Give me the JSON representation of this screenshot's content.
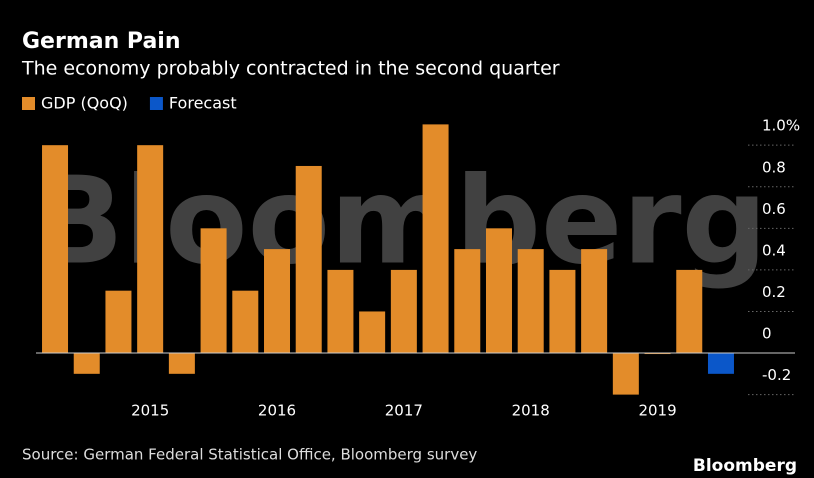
{
  "chart_data": {
    "type": "bar",
    "title": "German Pain",
    "subtitle": "The economy probably contracted in the second quarter",
    "source": "Source: German Federal Statistical Office, Bloomberg survey",
    "watermark": "Bloomberg",
    "brand": "Bloomberg",
    "x": [
      2014.25,
      2014.5,
      2014.75,
      2015,
      2015.25,
      2015.5,
      2015.75,
      2016,
      2016.25,
      2016.5,
      2016.75,
      2017,
      2017.25,
      2017.5,
      2017.75,
      2018,
      2018.25,
      2018.5,
      2018.75,
      2019,
      2019.25,
      2019.5
    ],
    "xlim": [
      2014.1,
      2019.65
    ],
    "xticks": [
      2015,
      2016,
      2017,
      2018,
      2019
    ],
    "series": [
      {
        "name": "GDP (QoQ)",
        "color": "#e38c2a",
        "values": [
          1.0,
          -0.1,
          0.3,
          1.0,
          -0.1,
          0.6,
          0.3,
          0.5,
          0.9,
          0.4,
          0.2,
          0.4,
          1.1,
          0.5,
          0.6,
          0.5,
          0.4,
          0.5,
          -0.2,
          0,
          0.4,
          null
        ]
      },
      {
        "name": "Forecast",
        "color": "#0b57c9",
        "values": [
          null,
          null,
          null,
          null,
          null,
          null,
          null,
          null,
          null,
          null,
          null,
          null,
          null,
          null,
          null,
          null,
          null,
          null,
          null,
          null,
          null,
          -0.1
        ]
      }
    ],
    "ylim": [
      -0.25,
      1.15
    ],
    "yticks": [
      {
        "value": 1,
        "label": "1.0%"
      },
      0.8,
      0.6,
      0.4,
      0.2,
      0,
      -0.2
    ],
    "grid": true
  }
}
